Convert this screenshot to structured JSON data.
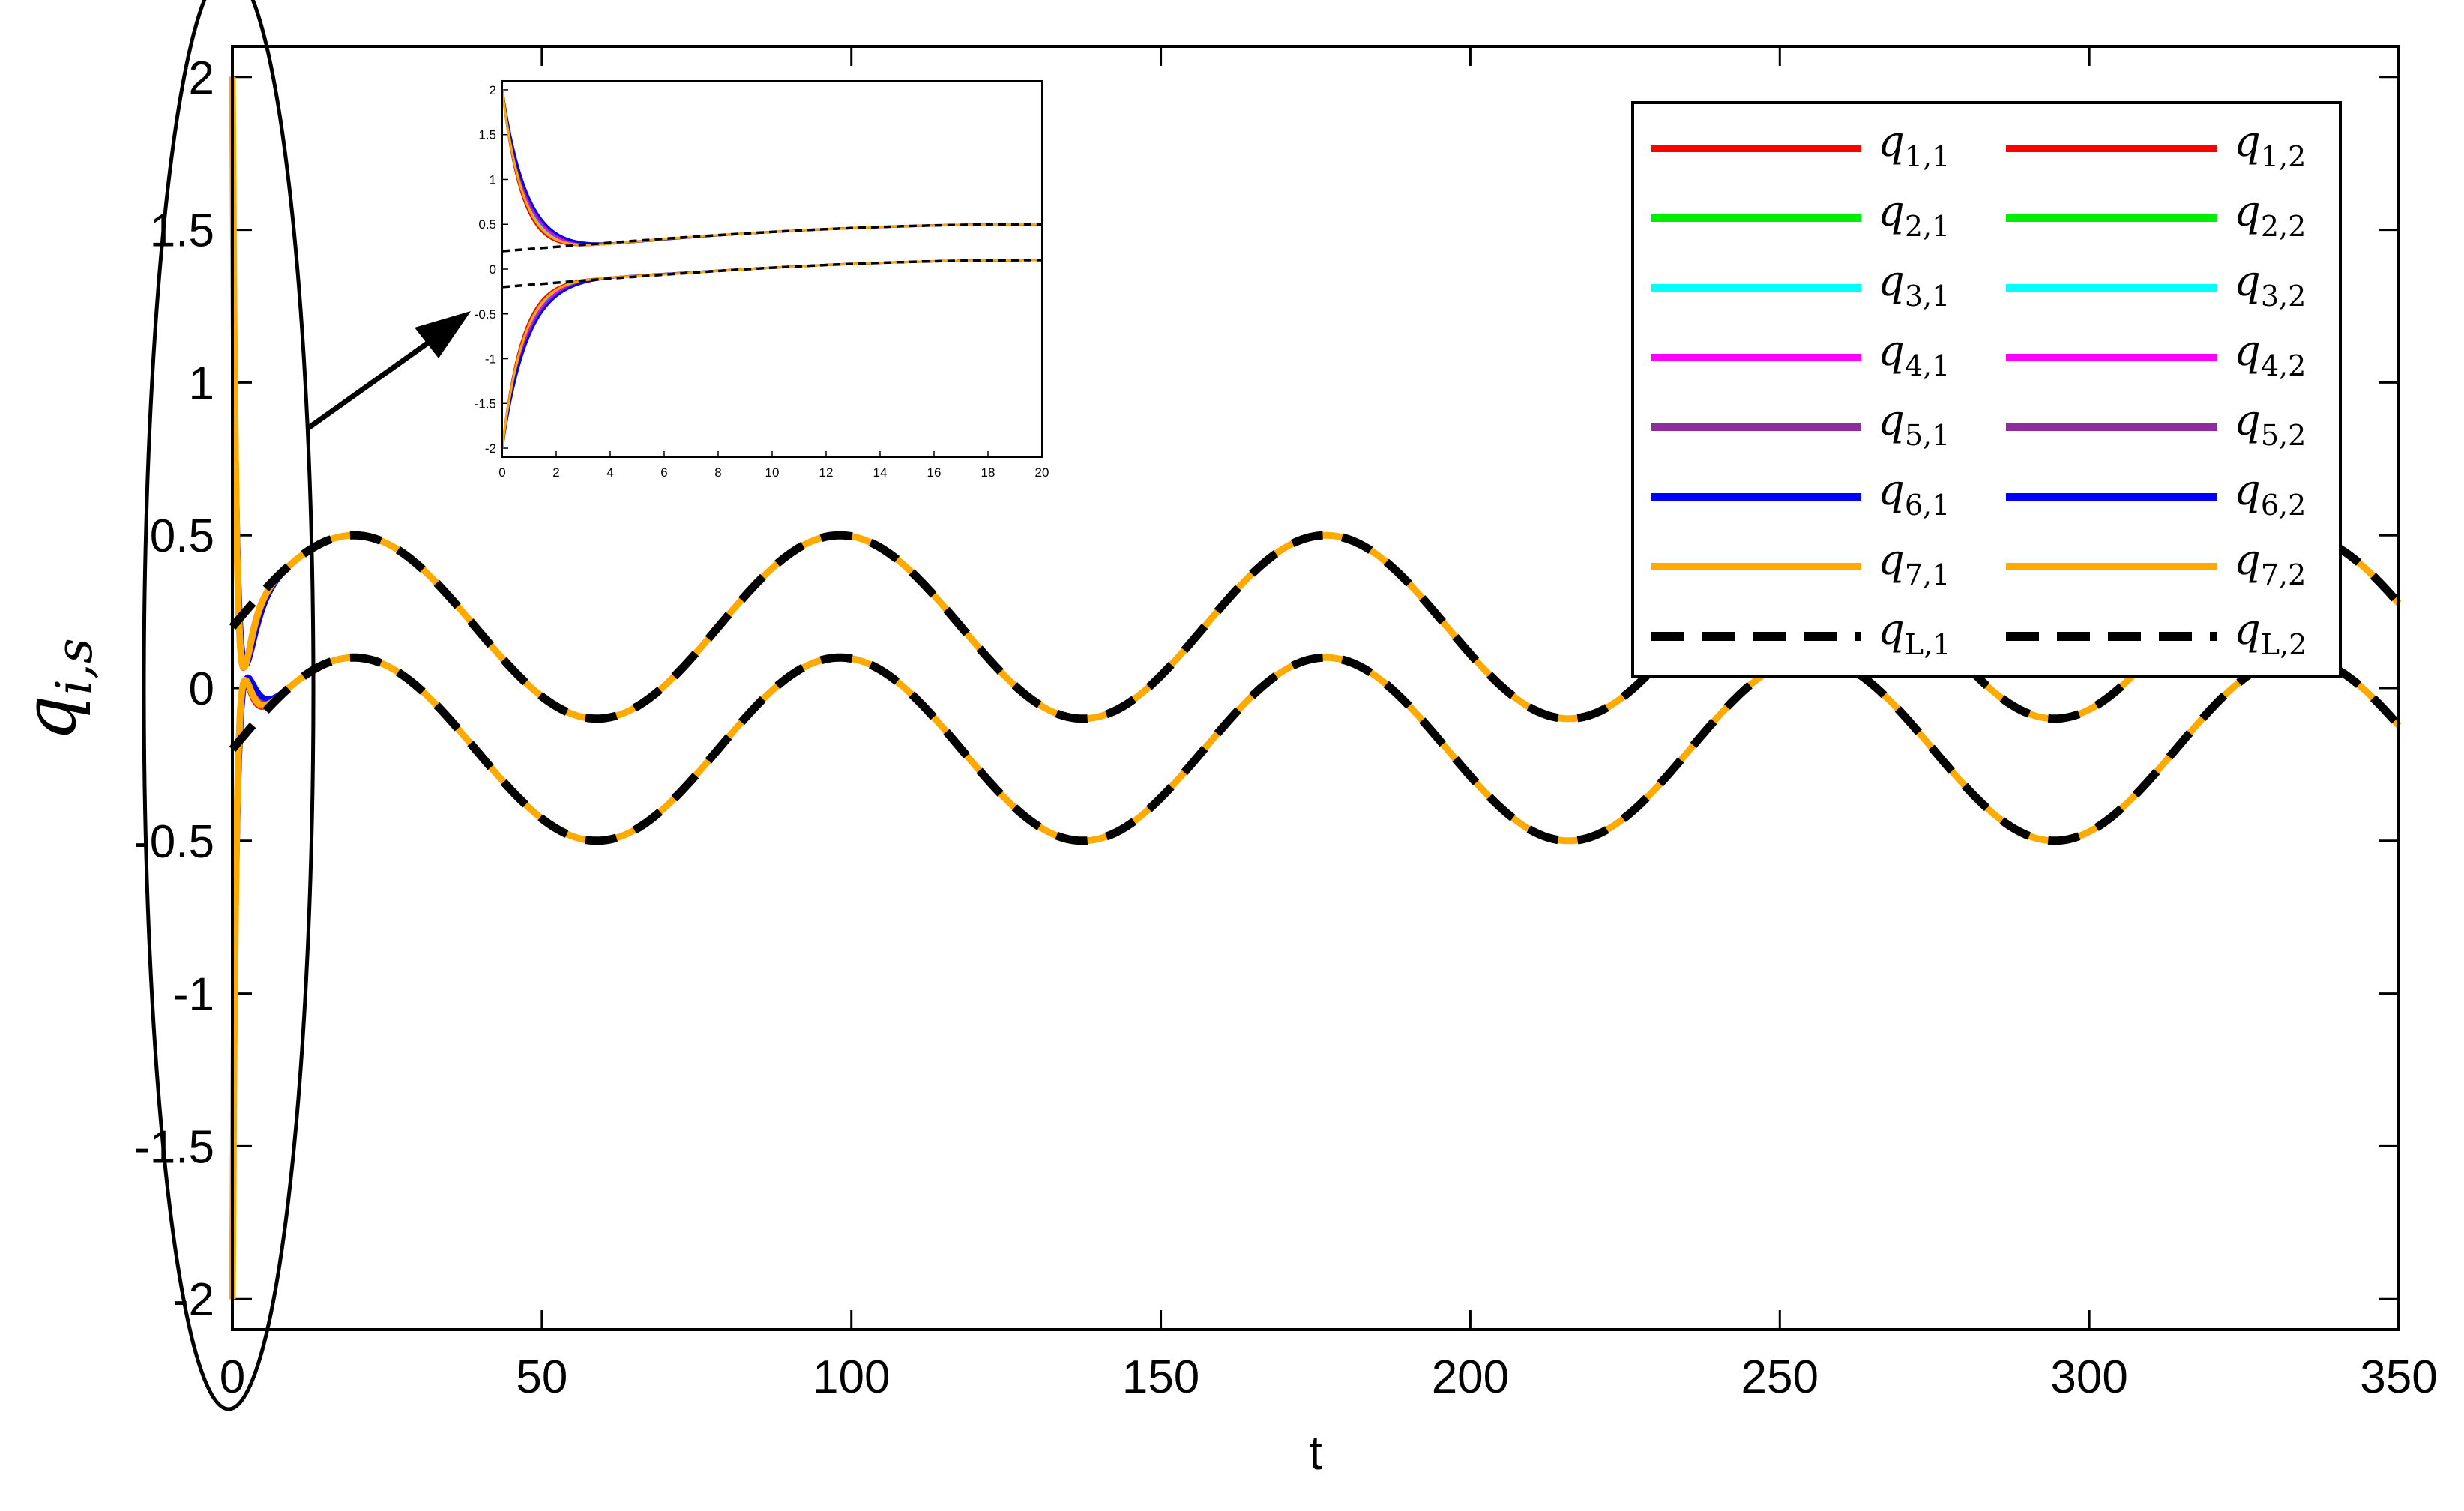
{
  "chart_data": {
    "type": "line",
    "xlabel": "t",
    "ylabel": {
      "base": "q",
      "sub": "i,s"
    },
    "xlim": [
      0,
      350
    ],
    "ylim": [
      -2.1,
      2.1
    ],
    "xticks": [
      0,
      50,
      100,
      150,
      200,
      250,
      300,
      350
    ],
    "xtick_labels": [
      "0",
      "50",
      "100",
      "150",
      "200",
      "250",
      "300",
      "350"
    ],
    "yticks": [
      -2,
      -1.5,
      -1,
      -0.5,
      0,
      0.5,
      1,
      1.5,
      2
    ],
    "ytick_labels": [
      "-2",
      "-1.5",
      "-1",
      "-0.5",
      "0",
      "0.5",
      "1",
      "1.5",
      "2"
    ],
    "colors": {
      "agent1": "#ff0000",
      "agent2": "#00ee00",
      "agent3": "#00ffff",
      "agent4": "#ff00ff",
      "agent5": "#8e2c9c",
      "agent6": "#0000ff",
      "agent7": "#ffaa00",
      "leader": "#000000"
    },
    "leader_signals": {
      "q_L1": {
        "description": "0.2 + 0.3 sin(2*pi*t/78.5)",
        "offset": 0.2,
        "amplitude": 0.3,
        "period": 78.5
      },
      "q_L2": {
        "description": "-0.2 + 0.3 sin(2*pi*t/78.5)",
        "offset": -0.2,
        "amplitude": 0.3,
        "period": 78.5
      }
    },
    "initial_conditions": {
      "s1": 2.0,
      "s2": -2.0
    },
    "legend": {
      "position": "top-right",
      "entries": [
        {
          "base": "q",
          "sub": "1,1",
          "series": "agent1",
          "style": "solid"
        },
        {
          "base": "q",
          "sub": "1,2",
          "series": "agent1",
          "style": "solid"
        },
        {
          "base": "q",
          "sub": "2,1",
          "series": "agent2",
          "style": "solid"
        },
        {
          "base": "q",
          "sub": "2,2",
          "series": "agent2",
          "style": "solid"
        },
        {
          "base": "q",
          "sub": "3,1",
          "series": "agent3",
          "style": "solid"
        },
        {
          "base": "q",
          "sub": "3,2",
          "series": "agent3",
          "style": "solid"
        },
        {
          "base": "q",
          "sub": "4,1",
          "series": "agent4",
          "style": "solid"
        },
        {
          "base": "q",
          "sub": "4,2",
          "series": "agent4",
          "style": "solid"
        },
        {
          "base": "q",
          "sub": "5,1",
          "series": "agent5",
          "style": "solid"
        },
        {
          "base": "q",
          "sub": "5,2",
          "series": "agent5",
          "style": "solid"
        },
        {
          "base": "q",
          "sub": "6,1",
          "series": "agent6",
          "style": "solid"
        },
        {
          "base": "q",
          "sub": "6,2",
          "series": "agent6",
          "style": "solid"
        },
        {
          "base": "q",
          "sub": "7,1",
          "series": "agent7",
          "style": "solid"
        },
        {
          "base": "q",
          "sub": "7,2",
          "series": "agent7",
          "style": "solid"
        },
        {
          "base": "q",
          "sub": "L,1",
          "series": "leader",
          "style": "dashed"
        },
        {
          "base": "q",
          "sub": "L,2",
          "series": "leader",
          "style": "dashed"
        }
      ]
    },
    "inset": {
      "xlim": [
        0,
        20
      ],
      "ylim": [
        -2.1,
        2.1
      ],
      "xticks": [
        0,
        2,
        4,
        6,
        8,
        10,
        12,
        14,
        16,
        18,
        20
      ],
      "xtick_labels": [
        "0",
        "2",
        "4",
        "6",
        "8",
        "10",
        "12",
        "14",
        "16",
        "18",
        "20"
      ],
      "yticks": [
        -2,
        -1.5,
        -1,
        -0.5,
        0,
        0.5,
        1,
        1.5,
        2
      ],
      "ytick_labels": [
        "-2",
        "-1.5",
        "-1",
        "-0.5",
        "0",
        "0.5",
        "1",
        "1.5",
        "2"
      ],
      "note": "zoom of the transient region 0 <= t <= 20"
    }
  }
}
